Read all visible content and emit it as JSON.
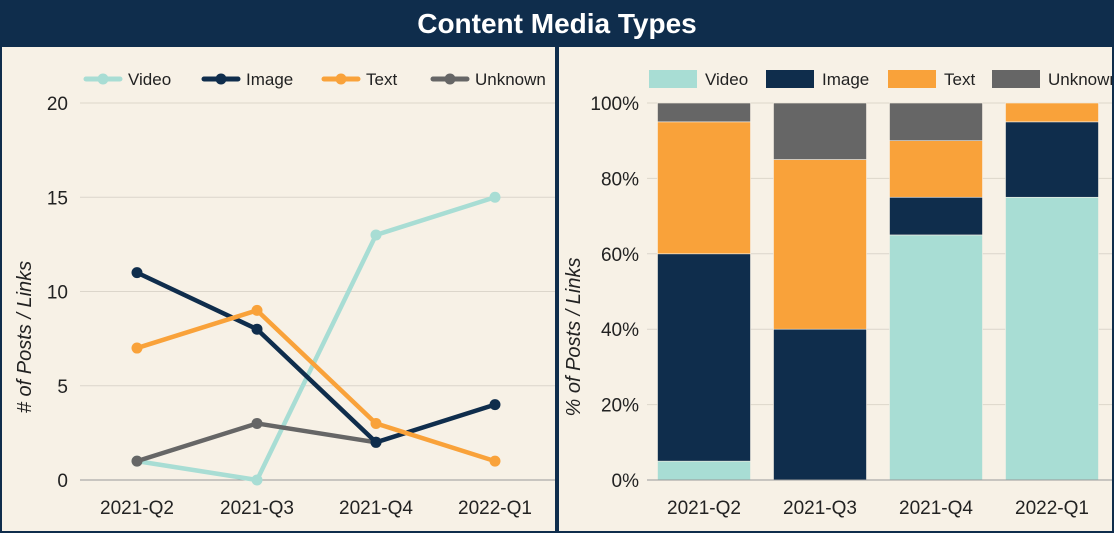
{
  "title": "Content Media Types",
  "colors": {
    "video": "#a8ddd4",
    "image": "#0f2d4c",
    "text": "#f9a23a",
    "unknown": "#666666",
    "background": "#f7f1e6",
    "frame": "#0f2d4c"
  },
  "chart_data": [
    {
      "type": "line",
      "title": "",
      "xlabel": "",
      "ylabel": "# of Posts / Links",
      "categories": [
        "2021-Q2",
        "2021-Q3",
        "2021-Q4",
        "2022-Q1"
      ],
      "ylim": [
        0,
        20
      ],
      "yticks": [
        0,
        5,
        10,
        15,
        20
      ],
      "ytick_labels": [
        "0",
        "5",
        "10",
        "15",
        "20"
      ],
      "legend": "top",
      "series": [
        {
          "name": "Video",
          "key": "video",
          "values": [
            1,
            0,
            13,
            15
          ]
        },
        {
          "name": "Image",
          "key": "image",
          "values": [
            11,
            8,
            2,
            4
          ]
        },
        {
          "name": "Text",
          "key": "text",
          "values": [
            7,
            9,
            3,
            1
          ]
        },
        {
          "name": "Unknown",
          "key": "unknown",
          "values": [
            1,
            3,
            2,
            null
          ]
        }
      ]
    },
    {
      "type": "bar",
      "stacked": true,
      "title": "",
      "xlabel": "",
      "ylabel": "% of Posts / Links",
      "categories": [
        "2021-Q2",
        "2021-Q3",
        "2021-Q4",
        "2022-Q1"
      ],
      "ylim": [
        0,
        100
      ],
      "yticks": [
        0,
        20,
        40,
        60,
        80,
        100
      ],
      "ytick_labels": [
        "0%",
        "20%",
        "40%",
        "60%",
        "80%",
        "100%"
      ],
      "legend": "top",
      "series": [
        {
          "name": "Video",
          "key": "video",
          "values": [
            5,
            0,
            65,
            75
          ]
        },
        {
          "name": "Image",
          "key": "image",
          "values": [
            55,
            40,
            10,
            20
          ]
        },
        {
          "name": "Text",
          "key": "text",
          "values": [
            35,
            45,
            15,
            5
          ]
        },
        {
          "name": "Unknown",
          "key": "unknown",
          "values": [
            5,
            15,
            10,
            0
          ]
        }
      ]
    }
  ]
}
